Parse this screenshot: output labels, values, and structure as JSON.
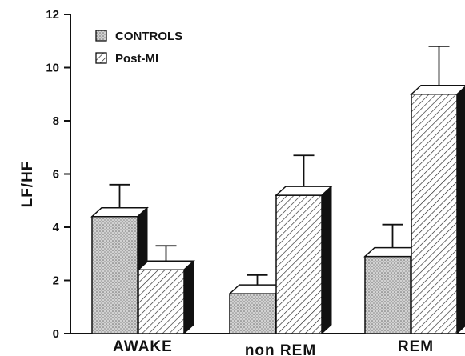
{
  "chart_data": {
    "type": "bar",
    "title": "",
    "xlabel": "",
    "ylabel": "LF/HF",
    "ylim": [
      0,
      12
    ],
    "yticks": [
      0,
      2,
      4,
      6,
      8,
      10,
      12
    ],
    "categories": [
      "AWAKE",
      "non REM",
      "REM"
    ],
    "series": [
      {
        "name": "CONTROLS",
        "values": [
          4.4,
          1.5,
          2.9
        ],
        "errors": [
          1.2,
          0.7,
          1.2
        ],
        "pattern": "dotted"
      },
      {
        "name": "Post-MI",
        "values": [
          2.4,
          5.2,
          9.0
        ],
        "errors": [
          0.9,
          1.5,
          1.8
        ],
        "pattern": "hatched"
      }
    ],
    "legend_position": "top-left",
    "grid": false,
    "bar_style": "3d-with-error-bars"
  }
}
